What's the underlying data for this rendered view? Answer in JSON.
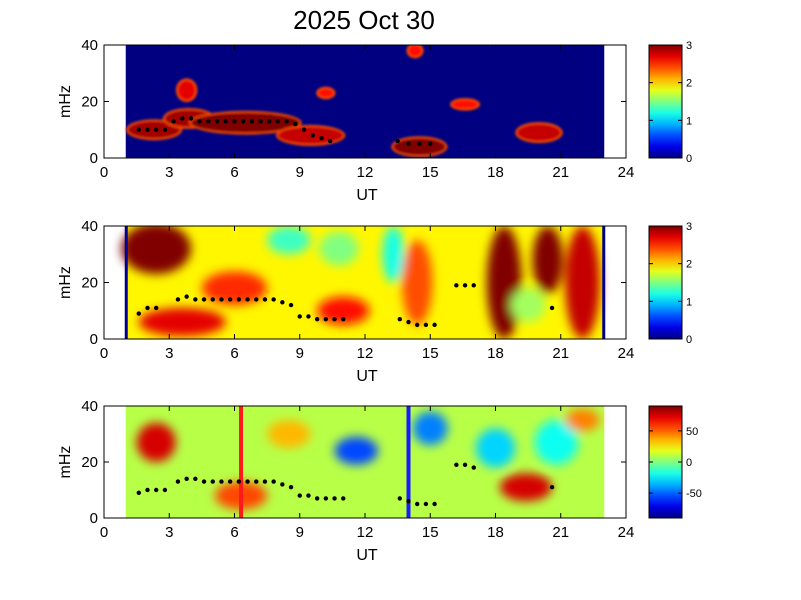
{
  "figure": {
    "title": "2025 Oct 30"
  },
  "colors": {
    "colormap": "jet",
    "blue_low": "#00008f",
    "red_high": "#800000",
    "marker": "#000000",
    "line_red": "#ff1a1a",
    "line_blue": "#1a1aff"
  },
  "chart_data": [
    {
      "type": "heatmap",
      "panel": "top",
      "xlabel": "UT",
      "ylabel": "mHz",
      "xlim": [
        0,
        24
      ],
      "ylim": [
        0,
        40
      ],
      "x_ticks": [
        "0",
        "3",
        "6",
        "9",
        "12",
        "15",
        "18",
        "21",
        "24"
      ],
      "y_ticks": [
        "0",
        "20",
        "40"
      ],
      "data_range_x": [
        1,
        23
      ],
      "colorbar": {
        "min": 0,
        "max": 3,
        "ticks": [
          "0",
          "1",
          "2",
          "3"
        ]
      },
      "background_value": 0,
      "blobs": [
        {
          "x": 2.3,
          "y": 10,
          "rx": 1.2,
          "ry": 3,
          "v": 2.9
        },
        {
          "x": 3.9,
          "y": 14,
          "rx": 1.1,
          "ry": 3,
          "v": 2.9
        },
        {
          "x": 6.5,
          "y": 12.5,
          "rx": 2.5,
          "ry": 3.5,
          "v": 3
        },
        {
          "x": 9.5,
          "y": 8,
          "rx": 1.5,
          "ry": 3,
          "v": 2.8
        },
        {
          "x": 3.8,
          "y": 24,
          "rx": 0.4,
          "ry": 3.5,
          "v": 2.7
        },
        {
          "x": 14.5,
          "y": 4,
          "rx": 1.2,
          "ry": 3,
          "v": 3
        },
        {
          "x": 20,
          "y": 9,
          "rx": 1,
          "ry": 3,
          "v": 2.8
        },
        {
          "x": 16.6,
          "y": 19,
          "rx": 0.6,
          "ry": 1.5,
          "v": 2.6
        },
        {
          "x": 14.3,
          "y": 38,
          "rx": 0.3,
          "ry": 2,
          "v": 2.6
        },
        {
          "x": 10.2,
          "y": 23,
          "rx": 0.35,
          "ry": 1.5,
          "v": 2.6
        }
      ],
      "markers": [
        {
          "x": 1.6,
          "y": 10
        },
        {
          "x": 2.0,
          "y": 10
        },
        {
          "x": 2.4,
          "y": 10
        },
        {
          "x": 2.8,
          "y": 10
        },
        {
          "x": 3.2,
          "y": 13
        },
        {
          "x": 3.6,
          "y": 14
        },
        {
          "x": 4.0,
          "y": 14
        },
        {
          "x": 4.4,
          "y": 13
        },
        {
          "x": 4.8,
          "y": 13
        },
        {
          "x": 5.2,
          "y": 13
        },
        {
          "x": 5.6,
          "y": 13
        },
        {
          "x": 6.0,
          "y": 13
        },
        {
          "x": 6.4,
          "y": 13
        },
        {
          "x": 6.8,
          "y": 13
        },
        {
          "x": 7.2,
          "y": 13
        },
        {
          "x": 7.6,
          "y": 13
        },
        {
          "x": 8.0,
          "y": 13
        },
        {
          "x": 8.4,
          "y": 13
        },
        {
          "x": 8.8,
          "y": 12
        },
        {
          "x": 9.2,
          "y": 10
        },
        {
          "x": 9.6,
          "y": 8
        },
        {
          "x": 10.0,
          "y": 7
        },
        {
          "x": 10.4,
          "y": 6
        },
        {
          "x": 13.5,
          "y": 6
        },
        {
          "x": 14.0,
          "y": 5
        },
        {
          "x": 14.5,
          "y": 5
        },
        {
          "x": 15.0,
          "y": 5
        }
      ]
    },
    {
      "type": "heatmap",
      "panel": "middle",
      "xlabel": "UT",
      "ylabel": "mHz",
      "xlim": [
        0,
        24
      ],
      "ylim": [
        0,
        40
      ],
      "x_ticks": [
        "0",
        "3",
        "6",
        "9",
        "12",
        "15",
        "18",
        "21",
        "24"
      ],
      "y_ticks": [
        "0",
        "20",
        "40"
      ],
      "data_range_x": [
        1,
        23
      ],
      "colorbar": {
        "min": 0,
        "max": 3,
        "ticks": [
          "0",
          "1",
          "2",
          "3"
        ]
      },
      "background_value": 1.9,
      "blobs": [
        {
          "x": 2.4,
          "y": 32,
          "rx": 1.6,
          "ry": 9,
          "v": 3
        },
        {
          "x": 3.6,
          "y": 6,
          "rx": 2,
          "ry": 5,
          "v": 2.7
        },
        {
          "x": 6.0,
          "y": 18,
          "rx": 1.5,
          "ry": 6,
          "v": 2.5
        },
        {
          "x": 11.0,
          "y": 10,
          "rx": 1.2,
          "ry": 5,
          "v": 2.6
        },
        {
          "x": 13.3,
          "y": 30,
          "rx": 0.5,
          "ry": 10,
          "v": 1.2
        },
        {
          "x": 14.4,
          "y": 20,
          "rx": 0.7,
          "ry": 15,
          "v": 2.4
        },
        {
          "x": 18.4,
          "y": 20,
          "rx": 0.8,
          "ry": 20,
          "v": 3
        },
        {
          "x": 19.5,
          "y": 12,
          "rx": 0.8,
          "ry": 6,
          "v": 1.6
        },
        {
          "x": 20.4,
          "y": 28,
          "rx": 0.7,
          "ry": 12,
          "v": 3
        },
        {
          "x": 22.0,
          "y": 20,
          "rx": 0.8,
          "ry": 20,
          "v": 2.8
        },
        {
          "x": 8.5,
          "y": 35,
          "rx": 1.0,
          "ry": 5,
          "v": 1.3
        },
        {
          "x": 10.8,
          "y": 32,
          "rx": 0.9,
          "ry": 6,
          "v": 1.5
        }
      ],
      "markers": [
        {
          "x": 1.6,
          "y": 9
        },
        {
          "x": 2.0,
          "y": 11
        },
        {
          "x": 2.4,
          "y": 11
        },
        {
          "x": 3.4,
          "y": 14
        },
        {
          "x": 3.8,
          "y": 15
        },
        {
          "x": 4.2,
          "y": 14
        },
        {
          "x": 4.6,
          "y": 14
        },
        {
          "x": 5.0,
          "y": 14
        },
        {
          "x": 5.4,
          "y": 14
        },
        {
          "x": 5.8,
          "y": 14
        },
        {
          "x": 6.2,
          "y": 14
        },
        {
          "x": 6.6,
          "y": 14
        },
        {
          "x": 7.0,
          "y": 14
        },
        {
          "x": 7.4,
          "y": 14
        },
        {
          "x": 7.8,
          "y": 14
        },
        {
          "x": 8.2,
          "y": 13
        },
        {
          "x": 8.6,
          "y": 12
        },
        {
          "x": 9.0,
          "y": 8
        },
        {
          "x": 9.4,
          "y": 8
        },
        {
          "x": 9.8,
          "y": 7
        },
        {
          "x": 10.2,
          "y": 7
        },
        {
          "x": 10.6,
          "y": 7
        },
        {
          "x": 11.0,
          "y": 7
        },
        {
          "x": 13.6,
          "y": 7
        },
        {
          "x": 14.0,
          "y": 6
        },
        {
          "x": 14.4,
          "y": 5
        },
        {
          "x": 14.8,
          "y": 5
        },
        {
          "x": 15.2,
          "y": 5
        },
        {
          "x": 16.2,
          "y": 19
        },
        {
          "x": 16.6,
          "y": 19
        },
        {
          "x": 17.0,
          "y": 19
        },
        {
          "x": 20.6,
          "y": 11
        }
      ]
    },
    {
      "type": "heatmap",
      "panel": "bottom",
      "xlabel": "UT",
      "ylabel": "mHz",
      "xlim": [
        0,
        24
      ],
      "ylim": [
        0,
        40
      ],
      "x_ticks": [
        "0",
        "3",
        "6",
        "9",
        "12",
        "15",
        "18",
        "21",
        "24"
      ],
      "y_ticks": [
        "0",
        "20",
        "40"
      ],
      "data_range_x": [
        1,
        23
      ],
      "colorbar": {
        "min": -90,
        "max": 90,
        "ticks": [
          "50",
          "0",
          "-50"
        ],
        "tick_values": [
          50,
          0,
          -50
        ]
      },
      "background_value": 10,
      "blobs": [
        {
          "x": 2.4,
          "y": 27,
          "rx": 0.9,
          "ry": 7,
          "v": 75
        },
        {
          "x": 6.3,
          "y": 8,
          "rx": 1.2,
          "ry": 5,
          "v": 55
        },
        {
          "x": 11.6,
          "y": 24,
          "rx": 1.0,
          "ry": 5,
          "v": -55
        },
        {
          "x": 15.0,
          "y": 32,
          "rx": 0.8,
          "ry": 6,
          "v": -45
        },
        {
          "x": 19.4,
          "y": 11,
          "rx": 1.2,
          "ry": 5,
          "v": 75
        },
        {
          "x": 18.0,
          "y": 25,
          "rx": 0.9,
          "ry": 7,
          "v": -30
        },
        {
          "x": 20.8,
          "y": 27,
          "rx": 1.0,
          "ry": 8,
          "v": -20
        },
        {
          "x": 22.0,
          "y": 35,
          "rx": 0.8,
          "ry": 4,
          "v": 45
        },
        {
          "x": 8.5,
          "y": 30,
          "rx": 1.0,
          "ry": 5,
          "v": 35
        }
      ],
      "vertical_lines": [
        {
          "x": 6.3,
          "color": "red"
        },
        {
          "x": 14.0,
          "color": "blue"
        }
      ],
      "markers": [
        {
          "x": 1.6,
          "y": 9
        },
        {
          "x": 2.0,
          "y": 10
        },
        {
          "x": 2.4,
          "y": 10
        },
        {
          "x": 2.8,
          "y": 10
        },
        {
          "x": 3.4,
          "y": 13
        },
        {
          "x": 3.8,
          "y": 14
        },
        {
          "x": 4.2,
          "y": 14
        },
        {
          "x": 4.6,
          "y": 13
        },
        {
          "x": 5.0,
          "y": 13
        },
        {
          "x": 5.4,
          "y": 13
        },
        {
          "x": 5.8,
          "y": 13
        },
        {
          "x": 6.2,
          "y": 13
        },
        {
          "x": 6.6,
          "y": 13
        },
        {
          "x": 7.0,
          "y": 13
        },
        {
          "x": 7.4,
          "y": 13
        },
        {
          "x": 7.8,
          "y": 13
        },
        {
          "x": 8.2,
          "y": 12
        },
        {
          "x": 8.6,
          "y": 11
        },
        {
          "x": 9.0,
          "y": 8
        },
        {
          "x": 9.4,
          "y": 8
        },
        {
          "x": 9.8,
          "y": 7
        },
        {
          "x": 10.2,
          "y": 7
        },
        {
          "x": 10.6,
          "y": 7
        },
        {
          "x": 11.0,
          "y": 7
        },
        {
          "x": 13.6,
          "y": 7
        },
        {
          "x": 14.0,
          "y": 6
        },
        {
          "x": 14.4,
          "y": 5
        },
        {
          "x": 14.8,
          "y": 5
        },
        {
          "x": 15.2,
          "y": 5
        },
        {
          "x": 16.2,
          "y": 19
        },
        {
          "x": 16.6,
          "y": 19
        },
        {
          "x": 17.0,
          "y": 18
        },
        {
          "x": 20.6,
          "y": 11
        }
      ]
    }
  ]
}
